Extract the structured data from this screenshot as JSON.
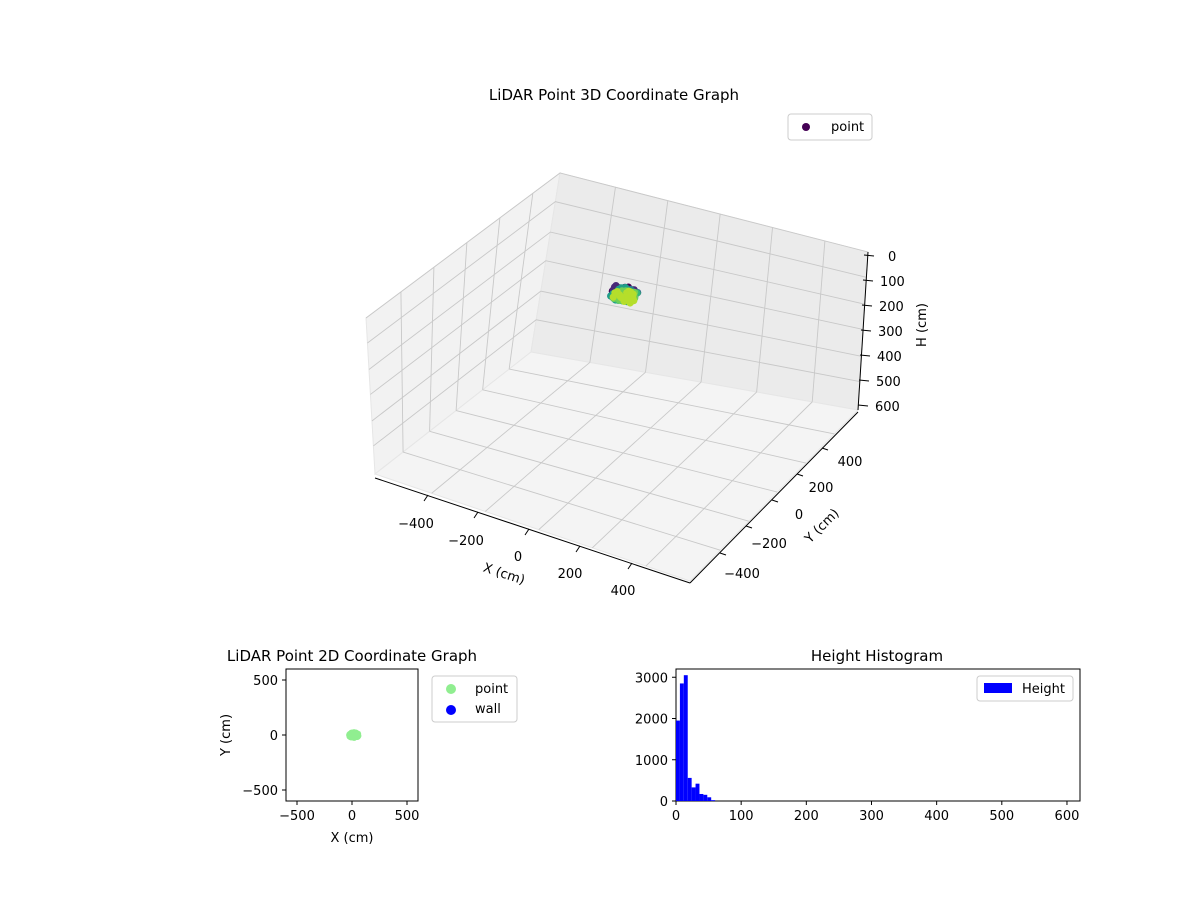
{
  "chart_data": [
    {
      "type": "scatter",
      "projection": "3d",
      "title": "LiDAR Point 3D Coordinate Graph",
      "xlabel": "X (cm)",
      "ylabel": "Y (cm)",
      "zlabel": "H (cm)",
      "xlim": [
        -600,
        600
      ],
      "ylim": [
        -600,
        600
      ],
      "zlim": [
        600,
        0
      ],
      "xticks": [
        "−400",
        "−200",
        "0",
        "200",
        "400"
      ],
      "yticks": [
        "−400",
        "−200",
        "0",
        "200",
        "400"
      ],
      "zticks": [
        "0",
        "100",
        "200",
        "300",
        "400",
        "500",
        "600"
      ],
      "grid": true,
      "colormap": "viridis",
      "legend": {
        "position": "top-right",
        "entries": [
          {
            "label": "point",
            "color": "#440154"
          }
        ]
      },
      "series": [
        {
          "name": "point",
          "cluster_center": {
            "x": 20,
            "y": 0,
            "h": 20
          },
          "extent_cm": 70
        }
      ]
    },
    {
      "type": "scatter",
      "title": "LiDAR Point 2D Coordinate Graph",
      "xlabel": "X (cm)",
      "ylabel": "Y (cm)",
      "xlim": [
        -600,
        600
      ],
      "ylim": [
        -600,
        600
      ],
      "xticks": [
        "−500",
        "0",
        "500"
      ],
      "yticks": [
        "500",
        "0",
        "−500"
      ],
      "legend": {
        "position": "outside-right",
        "entries": [
          {
            "label": "point",
            "color": "#90ee90"
          },
          {
            "label": "wall",
            "color": "#0000ff"
          }
        ]
      },
      "series": [
        {
          "name": "point",
          "color": "#90ee90",
          "cluster_center": {
            "x": 15,
            "y": 0
          },
          "extent_cm": 70
        },
        {
          "name": "wall",
          "color": "#0000ff",
          "points": []
        }
      ]
    },
    {
      "type": "bar",
      "title": "Height Histogram",
      "xlim": [
        0,
        620
      ],
      "ylim": [
        0,
        3200
      ],
      "xticks": [
        "0",
        "100",
        "200",
        "300",
        "400",
        "500",
        "600"
      ],
      "yticks": [
        "0",
        "1000",
        "2000",
        "3000"
      ],
      "bin_width": 6,
      "bins_start": 0,
      "values": [
        1950,
        2850,
        3050,
        560,
        330,
        420,
        170,
        150,
        90,
        20
      ],
      "color": "#0000ff",
      "legend": {
        "position": "top-right",
        "entries": [
          {
            "label": "Height",
            "color": "#0000ff"
          }
        ]
      }
    }
  ]
}
